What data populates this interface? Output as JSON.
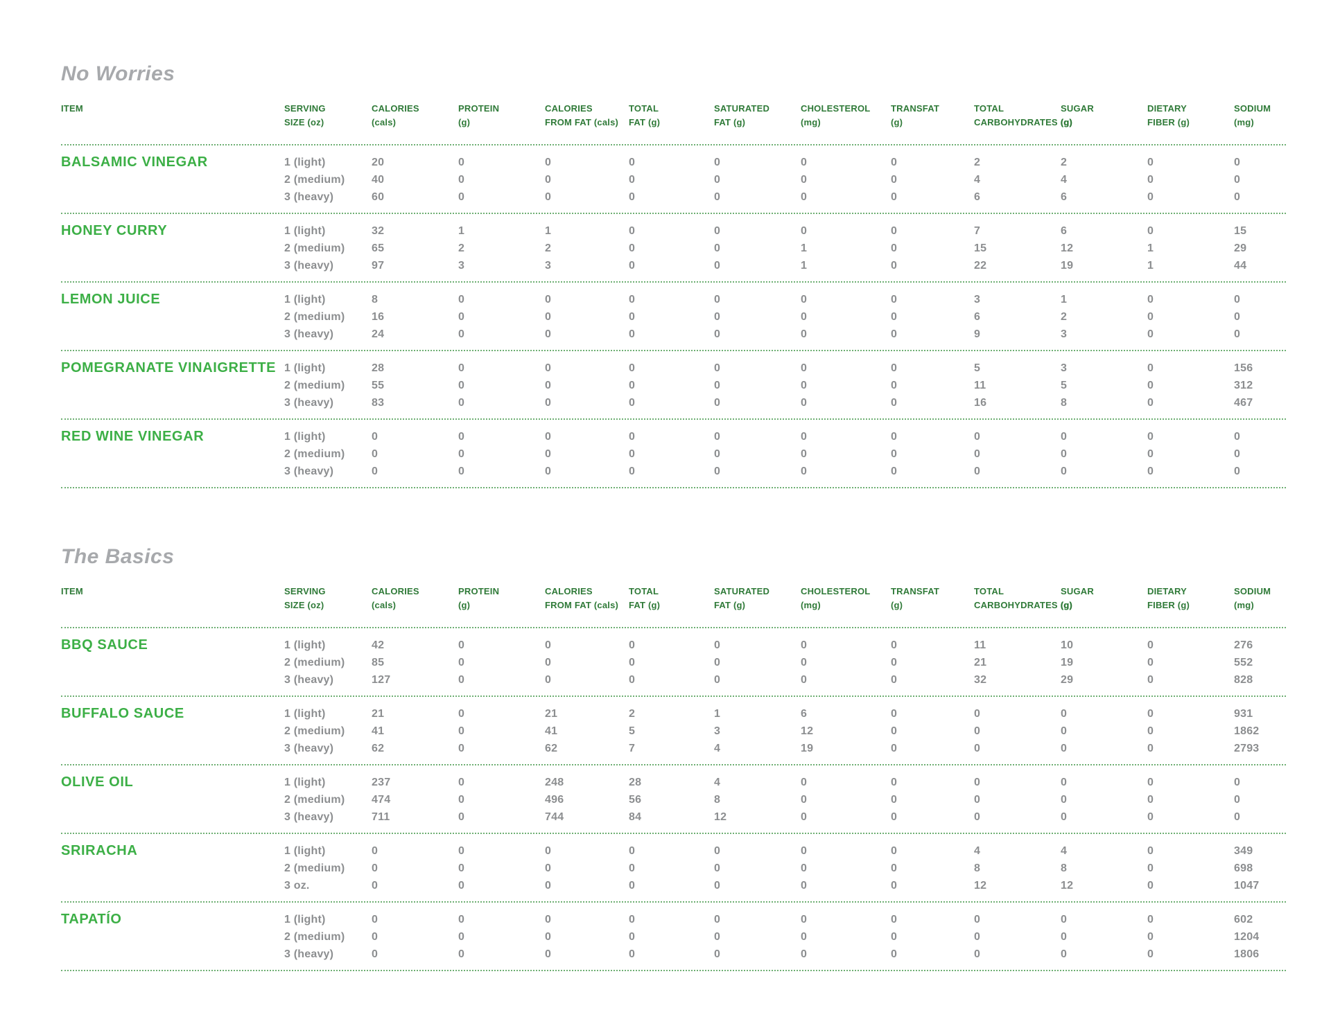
{
  "colors": {
    "item_green": "#3caf46",
    "header_green": "#2f7a38",
    "value_gray": "#8c8e90",
    "title_gray": "#a7a9ac",
    "dot_green": "#6eaf73",
    "page_bg": "#ffffff"
  },
  "columns": [
    {
      "line1": "ITEM",
      "line2": ""
    },
    {
      "line1": "SERVING",
      "line2": "SIZE (oz)"
    },
    {
      "line1": "CALORIES",
      "line2": "(cals)"
    },
    {
      "line1": "PROTEIN",
      "line2": "(g)"
    },
    {
      "line1": "CALORIES",
      "line2": "FROM FAT (cals)"
    },
    {
      "line1": "TOTAL",
      "line2": "FAT (g)"
    },
    {
      "line1": "SATURATED",
      "line2": "FAT (g)"
    },
    {
      "line1": "CHOLESTEROL",
      "line2": "(mg)"
    },
    {
      "line1": "TRANSFAT",
      "line2": "(g)"
    },
    {
      "line1": "TOTAL",
      "line2": "CARBOHYDRATES (g)"
    },
    {
      "line1": "SUGAR",
      "line2": "(g)"
    },
    {
      "line1": "DIETARY",
      "line2": "FIBER (g)"
    },
    {
      "line1": "SODIUM",
      "line2": "(mg)"
    }
  ],
  "sections": [
    {
      "title": "No Worries",
      "items": [
        {
          "name": "BALSAMIC VINEGAR",
          "rows": [
            [
              "1 (light)",
              "20",
              "0",
              "0",
              "0",
              "0",
              "0",
              "0",
              "2",
              "2",
              "0",
              "0"
            ],
            [
              "2 (medium)",
              "40",
              "0",
              "0",
              "0",
              "0",
              "0",
              "0",
              "4",
              "4",
              "0",
              "0"
            ],
            [
              "3 (heavy)",
              "60",
              "0",
              "0",
              "0",
              "0",
              "0",
              "0",
              "6",
              "6",
              "0",
              "0"
            ]
          ]
        },
        {
          "name": "HONEY CURRY",
          "rows": [
            [
              "1 (light)",
              "32",
              "1",
              "1",
              "0",
              "0",
              "0",
              "0",
              "7",
              "6",
              "0",
              "15"
            ],
            [
              "2 (medium)",
              "65",
              "2",
              "2",
              "0",
              "0",
              "1",
              "0",
              "15",
              "12",
              "1",
              "29"
            ],
            [
              "3 (heavy)",
              "97",
              "3",
              "3",
              "0",
              "0",
              "1",
              "0",
              "22",
              "19",
              "1",
              "44"
            ]
          ]
        },
        {
          "name": "LEMON JUICE",
          "rows": [
            [
              "1 (light)",
              "8",
              "0",
              "0",
              "0",
              "0",
              "0",
              "0",
              "3",
              "1",
              "0",
              "0"
            ],
            [
              "2 (medium)",
              "16",
              "0",
              "0",
              "0",
              "0",
              "0",
              "0",
              "6",
              "2",
              "0",
              "0"
            ],
            [
              "3 (heavy)",
              "24",
              "0",
              "0",
              "0",
              "0",
              "0",
              "0",
              "9",
              "3",
              "0",
              "0"
            ]
          ]
        },
        {
          "name": "POMEGRANATE VINAIGRETTE",
          "rows": [
            [
              "1 (light)",
              "28",
              "0",
              "0",
              "0",
              "0",
              "0",
              "0",
              "5",
              "3",
              "0",
              "156"
            ],
            [
              "2 (medium)",
              "55",
              "0",
              "0",
              "0",
              "0",
              "0",
              "0",
              "11",
              "5",
              "0",
              "312"
            ],
            [
              "3 (heavy)",
              "83",
              "0",
              "0",
              "0",
              "0",
              "0",
              "0",
              "16",
              "8",
              "0",
              "467"
            ]
          ]
        },
        {
          "name": "RED WINE VINEGAR",
          "rows": [
            [
              "1 (light)",
              "0",
              "0",
              "0",
              "0",
              "0",
              "0",
              "0",
              "0",
              "0",
              "0",
              "0"
            ],
            [
              "2 (medium)",
              "0",
              "0",
              "0",
              "0",
              "0",
              "0",
              "0",
              "0",
              "0",
              "0",
              "0"
            ],
            [
              "3 (heavy)",
              "0",
              "0",
              "0",
              "0",
              "0",
              "0",
              "0",
              "0",
              "0",
              "0",
              "0"
            ]
          ]
        }
      ]
    },
    {
      "title": "The Basics",
      "items": [
        {
          "name": "BBQ SAUCE",
          "rows": [
            [
              "1 (light)",
              "42",
              "0",
              "0",
              "0",
              "0",
              "0",
              "0",
              "11",
              "10",
              "0",
              "276"
            ],
            [
              "2 (medium)",
              "85",
              "0",
              "0",
              "0",
              "0",
              "0",
              "0",
              "21",
              "19",
              "0",
              "552"
            ],
            [
              "3 (heavy)",
              "127",
              "0",
              "0",
              "0",
              "0",
              "0",
              "0",
              "32",
              "29",
              "0",
              "828"
            ]
          ]
        },
        {
          "name": "BUFFALO SAUCE",
          "rows": [
            [
              "1 (light)",
              "21",
              "0",
              "21",
              "2",
              "1",
              "6",
              "0",
              "0",
              "0",
              "0",
              "931"
            ],
            [
              "2 (medium)",
              "41",
              "0",
              "41",
              "5",
              "3",
              "12",
              "0",
              "0",
              "0",
              "0",
              "1862"
            ],
            [
              "3 (heavy)",
              "62",
              "0",
              "62",
              "7",
              "4",
              "19",
              "0",
              "0",
              "0",
              "0",
              "2793"
            ]
          ]
        },
        {
          "name": "OLIVE OIL",
          "rows": [
            [
              "1 (light)",
              "237",
              "0",
              "248",
              "28",
              "4",
              "0",
              "0",
              "0",
              "0",
              "0",
              "0"
            ],
            [
              "2 (medium)",
              "474",
              "0",
              "496",
              "56",
              "8",
              "0",
              "0",
              "0",
              "0",
              "0",
              "0"
            ],
            [
              "3 (heavy)",
              "711",
              "0",
              "744",
              "84",
              "12",
              "0",
              "0",
              "0",
              "0",
              "0",
              "0"
            ]
          ]
        },
        {
          "name": "SRIRACHA",
          "rows": [
            [
              "1 (light)",
              "0",
              "0",
              "0",
              "0",
              "0",
              "0",
              "0",
              "4",
              "4",
              "0",
              "349"
            ],
            [
              "2 (medium)",
              "0",
              "0",
              "0",
              "0",
              "0",
              "0",
              "0",
              "8",
              "8",
              "0",
              "698"
            ],
            [
              "3 oz.",
              "0",
              "0",
              "0",
              "0",
              "0",
              "0",
              "0",
              "12",
              "12",
              "0",
              "1047"
            ]
          ]
        },
        {
          "name": "TAPATÍO",
          "rows": [
            [
              "1 (light)",
              "0",
              "0",
              "0",
              "0",
              "0",
              "0",
              "0",
              "0",
              "0",
              "0",
              "602"
            ],
            [
              "2 (medium)",
              "0",
              "0",
              "0",
              "0",
              "0",
              "0",
              "0",
              "0",
              "0",
              "0",
              "1204"
            ],
            [
              "3 (heavy)",
              "0",
              "0",
              "0",
              "0",
              "0",
              "0",
              "0",
              "0",
              "0",
              "0",
              "1806"
            ]
          ]
        }
      ]
    }
  ]
}
